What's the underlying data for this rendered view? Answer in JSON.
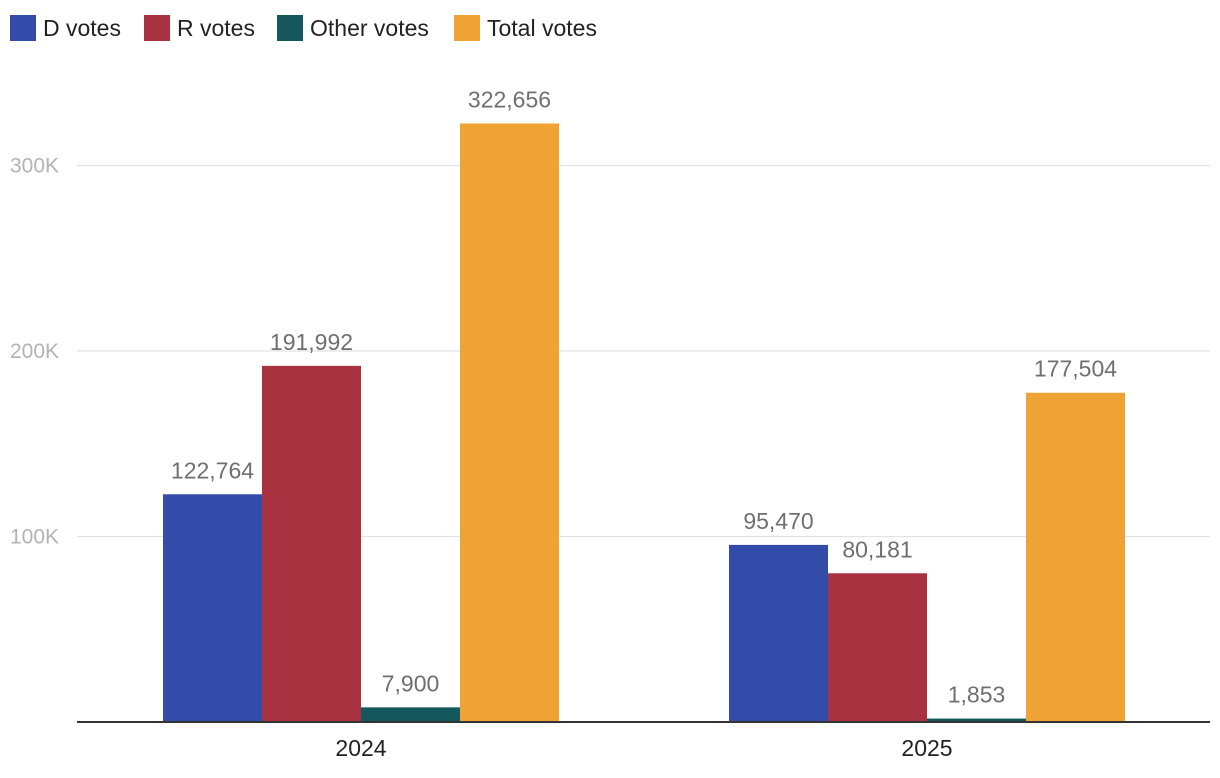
{
  "chart_data": {
    "type": "bar",
    "title": "",
    "xlabel": "",
    "ylabel": "",
    "categories": [
      "2024",
      "2025"
    ],
    "series": [
      {
        "name": "D votes",
        "color": "#344ca9",
        "values": [
          122764,
          95470
        ]
      },
      {
        "name": "R votes",
        "color": "#a83240",
        "values": [
          191992,
          80181
        ]
      },
      {
        "name": "Other votes",
        "color": "#14575d",
        "values": [
          7900,
          1853
        ]
      },
      {
        "name": "Total votes",
        "color": "#f0a335",
        "values": [
          322656,
          177504
        ]
      }
    ],
    "data_labels": [
      [
        "122,764",
        "95,470"
      ],
      [
        "191,992",
        "80,181"
      ],
      [
        "7,900",
        "1,853"
      ],
      [
        "322,656",
        "177,504"
      ]
    ],
    "yticks": [
      100000,
      200000,
      300000
    ],
    "ytick_labels": [
      "100K",
      "200K",
      "300K"
    ],
    "ylim": [
      0,
      330000
    ],
    "grid": true,
    "legend_position": "top-left"
  }
}
